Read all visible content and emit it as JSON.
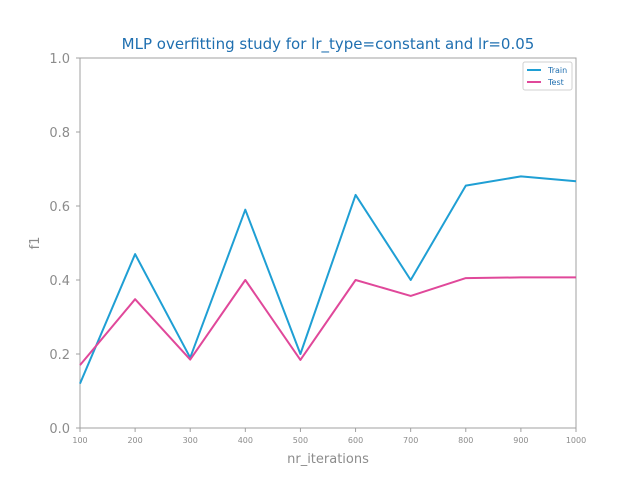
{
  "chart_data": {
    "type": "line",
    "title": "MLP overfitting study for lr_type=constant and lr=0.05",
    "xlabel": "nr_iterations",
    "ylabel": "f1",
    "x": [
      100,
      200,
      300,
      400,
      500,
      600,
      700,
      800,
      900,
      1000
    ],
    "xlim": [
      100,
      1000
    ],
    "ylim": [
      0.0,
      1.0
    ],
    "xticks": [
      "100",
      "200",
      "300",
      "400",
      "500",
      "600",
      "700",
      "800",
      "900",
      "1000"
    ],
    "yticks": [
      "0.0",
      "0.2",
      "0.4",
      "0.6",
      "0.8",
      "1.0"
    ],
    "grid": false,
    "legend_position": "top-right",
    "series": [
      {
        "name": "Train",
        "color": "#1f9fd4",
        "values": [
          0.12,
          0.47,
          0.19,
          0.59,
          0.2,
          0.63,
          0.4,
          0.655,
          0.68,
          0.667
        ]
      },
      {
        "name": "Test",
        "color": "#e0489a",
        "values": [
          0.17,
          0.348,
          0.185,
          0.4,
          0.184,
          0.4,
          0.357,
          0.405,
          0.407,
          0.407
        ]
      }
    ]
  }
}
